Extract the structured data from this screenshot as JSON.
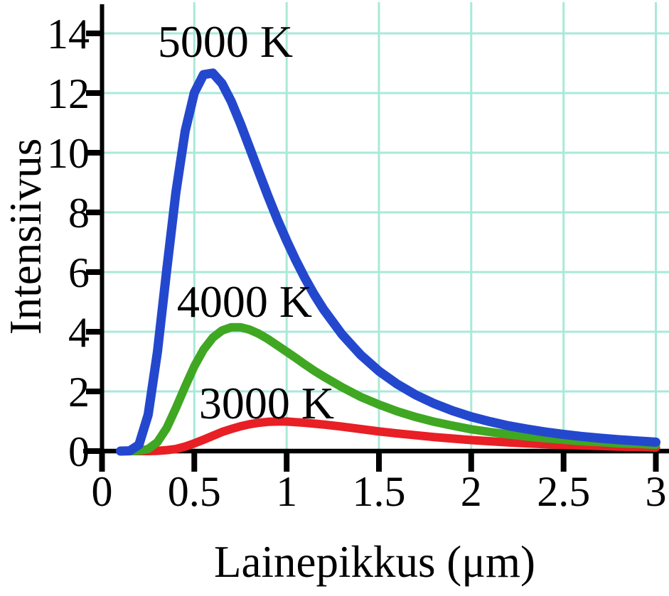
{
  "figure": {
    "background": "#ffffff",
    "axis_color": "#000000",
    "text_color": "#000000"
  },
  "chart_data": {
    "type": "line",
    "title": "",
    "xlabel": "Lainepikkus (μm)",
    "ylabel": "Intensiivus",
    "xlim": [
      0,
      3
    ],
    "ylim": [
      0,
      14.95
    ],
    "grid": {
      "visible": true,
      "color": "#a9e9d8",
      "x_lines": [
        0.5,
        1,
        1.5,
        2,
        2.5,
        3
      ],
      "y_lines": [
        2,
        4,
        6,
        8,
        10,
        12,
        14
      ]
    },
    "legend_position": "none",
    "x_ticks": [
      {
        "v": 0,
        "label": "0"
      },
      {
        "v": 0.5,
        "label": "0.5"
      },
      {
        "v": 1,
        "label": "1"
      },
      {
        "v": 1.5,
        "label": "1.5"
      },
      {
        "v": 2,
        "label": "2"
      },
      {
        "v": 2.5,
        "label": "2.5"
      },
      {
        "v": 3,
        "label": "3"
      }
    ],
    "y_ticks": [
      {
        "v": 0,
        "label": "0"
      },
      {
        "v": 2,
        "label": "2"
      },
      {
        "v": 4,
        "label": "4"
      },
      {
        "v": 6,
        "label": "6"
      },
      {
        "v": 8,
        "label": "8"
      },
      {
        "v": 10,
        "label": "10"
      },
      {
        "v": 12,
        "label": "12"
      },
      {
        "v": 14,
        "label": "14"
      }
    ],
    "x": [
      0.1,
      0.15,
      0.2,
      0.25,
      0.3,
      0.35,
      0.4,
      0.45,
      0.5,
      0.55,
      0.6,
      0.65,
      0.7,
      0.75,
      0.8,
      0.85,
      0.9,
      0.95,
      1.0,
      1.05,
      1.1,
      1.15,
      1.2,
      1.3,
      1.4,
      1.5,
      1.6,
      1.7,
      1.8,
      1.9,
      2.0,
      2.1,
      2.2,
      2.3,
      2.4,
      2.5,
      2.6,
      2.7,
      2.8,
      2.9,
      3.0
    ],
    "series": [
      {
        "name": "5000 K",
        "color": "#2448cd",
        "stroke_width": 13,
        "peak": {
          "x": 0.58,
          "y": 12.7
        },
        "values": [
          0.0,
          0.01,
          0.21,
          1.22,
          3.32,
          6.05,
          8.67,
          10.72,
          12.01,
          12.62,
          12.67,
          12.32,
          11.72,
          10.97,
          10.16,
          9.34,
          8.53,
          7.76,
          7.05,
          6.39,
          5.79,
          5.24,
          4.75,
          3.91,
          3.23,
          2.68,
          2.24,
          1.88,
          1.59,
          1.35,
          1.15,
          0.99,
          0.85,
          0.74,
          0.64,
          0.56,
          0.49,
          0.43,
          0.38,
          0.34,
          0.3
        ]
      },
      {
        "name": "4000 K",
        "color": "#3fa722",
        "stroke_width": 12,
        "peak": {
          "x": 0.72,
          "y": 4.16
        },
        "values": [
          0.0,
          0.0,
          0.01,
          0.07,
          0.3,
          0.77,
          1.44,
          2.16,
          2.84,
          3.4,
          3.8,
          4.04,
          4.15,
          4.15,
          4.07,
          3.93,
          3.75,
          3.54,
          3.33,
          3.12,
          2.9,
          2.69,
          2.5,
          2.14,
          1.82,
          1.56,
          1.33,
          1.14,
          0.98,
          0.85,
          0.73,
          0.64,
          0.56,
          0.49,
          0.43,
          0.38,
          0.33,
          0.3,
          0.26,
          0.24,
          0.21
        ]
      },
      {
        "name": "3000 K",
        "color": "#e81f25",
        "stroke_width": 12,
        "peak": {
          "x": 0.97,
          "y": 0.99
        },
        "values": [
          0.0,
          0.0,
          0.0,
          0.0,
          0.01,
          0.03,
          0.07,
          0.15,
          0.26,
          0.38,
          0.51,
          0.64,
          0.74,
          0.83,
          0.9,
          0.95,
          0.98,
          0.99,
          0.99,
          0.97,
          0.95,
          0.92,
          0.89,
          0.82,
          0.74,
          0.66,
          0.59,
          0.53,
          0.47,
          0.42,
          0.37,
          0.33,
          0.29,
          0.26,
          0.23,
          0.21,
          0.19,
          0.17,
          0.15,
          0.14,
          0.12
        ]
      }
    ],
    "annotations": [
      {
        "text": "5000 K",
        "series": "5000 K"
      },
      {
        "text": "4000 K",
        "series": "4000 K"
      },
      {
        "text": "3000 K",
        "series": "3000 K"
      }
    ]
  }
}
